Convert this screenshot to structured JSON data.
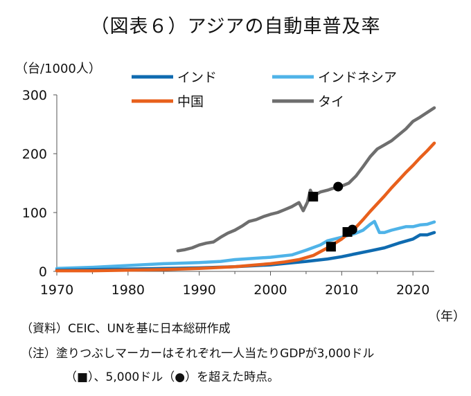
{
  "chart_data": {
    "type": "line",
    "title": "（図表６）アジアの自動車普及率",
    "ylabel": "（台/1000人）",
    "xlabel": "（年）",
    "ylim": [
      0,
      300
    ],
    "xlim": [
      1970,
      2023
    ],
    "yticks": [
      "0",
      "100",
      "200",
      "300"
    ],
    "xticks": [
      "1970",
      "1980",
      "1990",
      "2000",
      "2010",
      "2020"
    ],
    "legend_position": "top",
    "series": [
      {
        "name": "インド",
        "color": "#0f6bb0",
        "points": [
          [
            1970,
            2
          ],
          [
            1975,
            3
          ],
          [
            1980,
            4
          ],
          [
            1985,
            5
          ],
          [
            1990,
            6
          ],
          [
            1995,
            8
          ],
          [
            2000,
            11
          ],
          [
            2005,
            17
          ],
          [
            2008,
            21
          ],
          [
            2010,
            25
          ],
          [
            2012,
            30
          ],
          [
            2014,
            35
          ],
          [
            2016,
            40
          ],
          [
            2018,
            48
          ],
          [
            2020,
            55
          ],
          [
            2021,
            62
          ],
          [
            2022,
            62
          ],
          [
            2023,
            66
          ]
        ]
      },
      {
        "name": "インドネシア",
        "color": "#4fb3e8",
        "points": [
          [
            1970,
            5
          ],
          [
            1975,
            7
          ],
          [
            1980,
            10
          ],
          [
            1985,
            13
          ],
          [
            1990,
            15
          ],
          [
            1993,
            17
          ],
          [
            1995,
            20
          ],
          [
            2000,
            24
          ],
          [
            2003,
            28
          ],
          [
            2005,
            36
          ],
          [
            2007,
            45
          ],
          [
            2008,
            52
          ],
          [
            2010,
            58
          ],
          [
            2012,
            65
          ],
          [
            2013,
            70
          ],
          [
            2014,
            80
          ],
          [
            2014.6,
            85
          ],
          [
            2015.3,
            66
          ],
          [
            2016,
            66
          ],
          [
            2017,
            70
          ],
          [
            2018,
            73
          ],
          [
            2019,
            76
          ],
          [
            2020,
            76
          ],
          [
            2021,
            79
          ],
          [
            2022,
            80
          ],
          [
            2023,
            84
          ]
        ]
      },
      {
        "name": "中国",
        "color": "#e8601c",
        "points": [
          [
            1970,
            1
          ],
          [
            1975,
            1
          ],
          [
            1980,
            2
          ],
          [
            1985,
            3
          ],
          [
            1990,
            5
          ],
          [
            1995,
            8
          ],
          [
            2000,
            13
          ],
          [
            2002,
            16
          ],
          [
            2004,
            20
          ],
          [
            2006,
            27
          ],
          [
            2008,
            40
          ],
          [
            2010,
            55
          ],
          [
            2011,
            65
          ],
          [
            2012,
            75
          ],
          [
            2013,
            88
          ],
          [
            2014,
            102
          ],
          [
            2015,
            115
          ],
          [
            2016,
            128
          ],
          [
            2017,
            142
          ],
          [
            2018,
            155
          ],
          [
            2019,
            168
          ],
          [
            2020,
            180
          ],
          [
            2021,
            193
          ],
          [
            2022,
            205
          ],
          [
            2023,
            218
          ]
        ]
      },
      {
        "name": "タイ",
        "color": "#6e6e6e",
        "points": [
          [
            1987,
            35
          ],
          [
            1988,
            37
          ],
          [
            1989,
            40
          ],
          [
            1990,
            45
          ],
          [
            1991,
            48
          ],
          [
            1992,
            50
          ],
          [
            1993,
            58
          ],
          [
            1994,
            65
          ],
          [
            1995,
            70
          ],
          [
            1996,
            77
          ],
          [
            1997,
            85
          ],
          [
            1998,
            88
          ],
          [
            1999,
            93
          ],
          [
            2000,
            97
          ],
          [
            2001,
            100
          ],
          [
            2002,
            105
          ],
          [
            2003,
            110
          ],
          [
            2004,
            117
          ],
          [
            2004.6,
            103
          ],
          [
            2005.2,
            118
          ],
          [
            2005.6,
            138
          ],
          [
            2006,
            128
          ],
          [
            2007,
            135
          ],
          [
            2008,
            138
          ],
          [
            2009,
            142
          ],
          [
            2010,
            145
          ],
          [
            2011,
            150
          ],
          [
            2012,
            162
          ],
          [
            2013,
            178
          ],
          [
            2014,
            195
          ],
          [
            2015,
            208
          ],
          [
            2016,
            215
          ],
          [
            2017,
            222
          ],
          [
            2018,
            232
          ],
          [
            2019,
            242
          ],
          [
            2020,
            255
          ],
          [
            2021,
            262
          ],
          [
            2022,
            270
          ],
          [
            2023,
            278
          ]
        ]
      }
    ],
    "markers": [
      {
        "series": "タイ",
        "shape": "square",
        "x": 2006,
        "y": 127
      },
      {
        "series": "タイ",
        "shape": "circle",
        "x": 2009.5,
        "y": 144
      },
      {
        "series": "中国",
        "shape": "square",
        "x": 2008.5,
        "y": 42
      },
      {
        "series": "中国",
        "shape": "circle",
        "x": 2011.5,
        "y": 71
      },
      {
        "series": "インドネシア",
        "shape": "square",
        "x": 2010.8,
        "y": 67
      }
    ]
  },
  "notes": {
    "source": "（資料）CEIC、UNを基に日本総研作成",
    "note_line1": "（注）塗りつぶしマーカーはそれぞれ一人当たりGDPが3,000ドル",
    "note_line2": "（■）、5,000ドル（●）を超えた時点。"
  }
}
